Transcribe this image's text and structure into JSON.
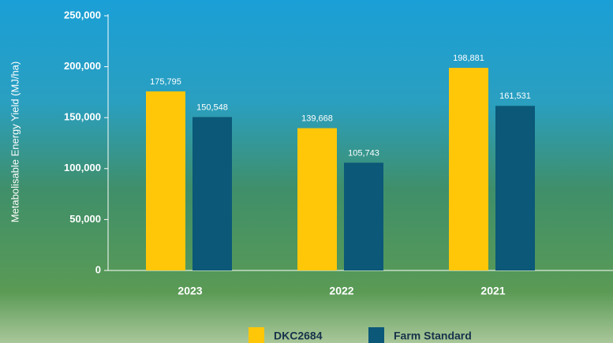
{
  "chart_data": {
    "type": "bar",
    "y_axis_label": "Metabolisable Energy Yield (MJ/ha)",
    "categories": [
      "2023",
      "2022",
      "2021"
    ],
    "series": [
      {
        "name": "DKC2684",
        "color": "#ffc708",
        "values": [
          175795,
          139668,
          198881
        ],
        "value_labels": [
          "175,795",
          "139,668",
          "198,881"
        ]
      },
      {
        "name": "Farm Standard",
        "color": "#0b5878",
        "values": [
          150548,
          105743,
          161531
        ],
        "value_labels": [
          "150,548",
          "105,743",
          "161,531"
        ]
      }
    ],
    "ylim": [
      0,
      250000
    ],
    "yticks": [
      0,
      {
        "value": 50000,
        "label": "50,000"
      },
      {
        "value": 100000,
        "label": "100,000"
      },
      {
        "value": 150000,
        "label": "150,000"
      },
      {
        "value": 200000,
        "label": "200,000"
      },
      {
        "value": 250000,
        "label": "250,000"
      }
    ],
    "legend": "bottom"
  }
}
